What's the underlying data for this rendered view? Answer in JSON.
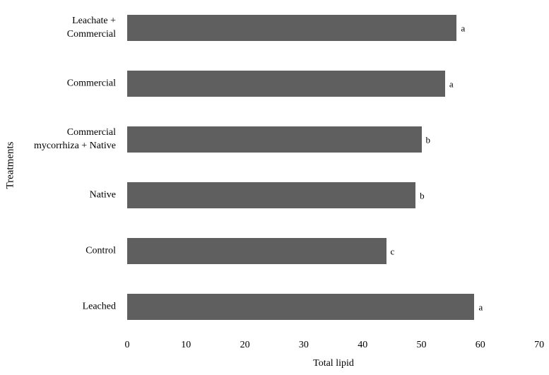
{
  "chart_data": {
    "type": "bar",
    "orientation": "horizontal",
    "title": "",
    "xlabel": "Total lipid",
    "ylabel": "Treatments",
    "categories": [
      "Leachate +\nCommercial",
      "Commercial",
      "Commercial\nmycorrhiza + Native",
      "Native",
      "Control",
      "Leached"
    ],
    "values": [
      56,
      54,
      50,
      49,
      44,
      59
    ],
    "bar_labels": [
      "a",
      "a",
      "b",
      "b",
      "c",
      "a"
    ],
    "xlim": [
      0,
      70
    ],
    "xticks": [
      0,
      10,
      20,
      30,
      40,
      50,
      60,
      70
    ],
    "bar_color": "#5f5f5f",
    "text_color": "#000000",
    "background_color": "#ffffff",
    "grid": false,
    "legend": false,
    "axis_lines": false
  }
}
